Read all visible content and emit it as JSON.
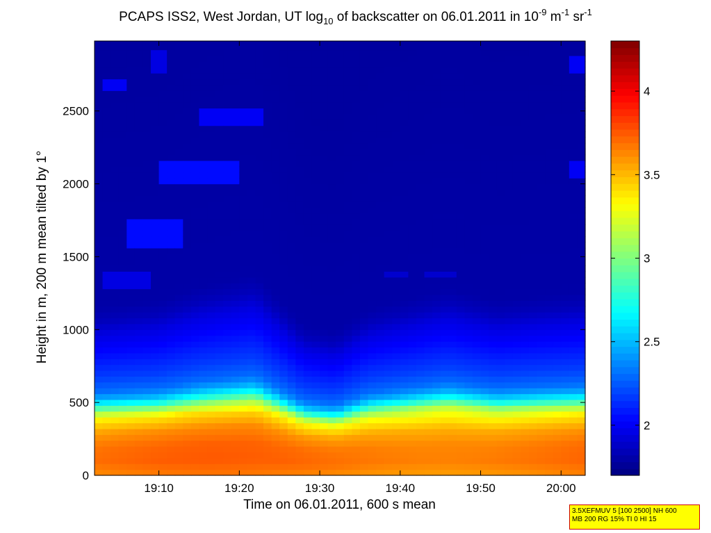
{
  "title": {
    "prefix": "PCAPS ISS2, West Jordan, UT log",
    "log_base": "10",
    "middle": " of backscatter on 06.01.2011 in 10",
    "exp1": "-9",
    "unit1": " m",
    "exp2": "-1",
    "unit2": " sr",
    "exp3": "-1"
  },
  "info_box": {
    "line1": "3.5XEFMUV 5 [100 2500] NH 600",
    "line2": "MB 200 RG 15% TI 0 HI 15"
  },
  "chart_data": {
    "type": "heatmap",
    "xlabel": "Time on 06.01.2011, 600 s mean",
    "ylabel": "Height in m, 200 m mean tilted by 1°",
    "x_range_minutes": [
      1142,
      1203
    ],
    "xticks": [
      {
        "label": "19:10",
        "min": 1150
      },
      {
        "label": "19:20",
        "min": 1160
      },
      {
        "label": "19:30",
        "min": 1170
      },
      {
        "label": "19:40",
        "min": 1180
      },
      {
        "label": "19:50",
        "min": 1190
      },
      {
        "label": "20:00",
        "min": 1200
      }
    ],
    "ylim": [
      0,
      2980
    ],
    "yticks": [
      0,
      500,
      1000,
      1500,
      2000,
      2500
    ],
    "ytick_labels": [
      "0",
      "500",
      "1000",
      "1500",
      "2000",
      "2500"
    ],
    "colorbar": {
      "colormap": "jet",
      "clim": [
        1.7,
        4.3
      ],
      "ticks": [
        2,
        2.5,
        3,
        3.5,
        4
      ],
      "tick_labels": [
        "2",
        "2.5",
        "3",
        "3.5",
        "4"
      ]
    },
    "profile_height_m": [
      0,
      100,
      200,
      300,
      400,
      450,
      500,
      550,
      600,
      700,
      800,
      900,
      1000,
      1100,
      1200,
      2980
    ],
    "profile_value": [
      3.62,
      3.7,
      3.68,
      3.58,
      3.35,
      3.1,
      2.72,
      2.45,
      2.3,
      2.18,
      2.1,
      2.02,
      1.95,
      1.85,
      1.8,
      1.78
    ],
    "boundary_layer_top_m": [
      {
        "min": 1142,
        "h": 960
      },
      {
        "min": 1150,
        "h": 1000
      },
      {
        "min": 1155,
        "h": 1080
      },
      {
        "min": 1162,
        "h": 1150
      },
      {
        "min": 1168,
        "h": 860
      },
      {
        "min": 1172,
        "h": 820
      },
      {
        "min": 1176,
        "h": 950
      },
      {
        "min": 1182,
        "h": 1020
      },
      {
        "min": 1186,
        "h": 1070
      },
      {
        "min": 1192,
        "h": 1000
      },
      {
        "min": 1198,
        "h": 1030
      },
      {
        "min": 1203,
        "h": 1050
      }
    ],
    "aerosol_patches": [
      {
        "min": 1146,
        "max": 1153,
        "h0": 1570,
        "h1": 1760,
        "value": 2.05
      },
      {
        "min": 1143,
        "max": 1149,
        "h0": 1300,
        "h1": 1380,
        "value": 1.95
      },
      {
        "min": 1150,
        "max": 1160,
        "h0": 2020,
        "h1": 2140,
        "value": 2.05
      },
      {
        "min": 1155,
        "max": 1163,
        "h0": 2400,
        "h1": 2500,
        "value": 2.0
      },
      {
        "min": 1143,
        "max": 1146,
        "h0": 2640,
        "h1": 2720,
        "value": 2.0
      },
      {
        "min": 1149,
        "max": 1151,
        "h0": 2770,
        "h1": 2900,
        "value": 1.95
      },
      {
        "min": 1201,
        "max": 1203,
        "h0": 2060,
        "h1": 2160,
        "value": 2.0
      },
      {
        "min": 1201,
        "max": 1203,
        "h0": 2760,
        "h1": 2870,
        "value": 2.0
      },
      {
        "min": 1178,
        "max": 1181,
        "h0": 1350,
        "h1": 1380,
        "value": 1.9
      },
      {
        "min": 1183,
        "max": 1187,
        "h0": 1350,
        "h1": 1390,
        "value": 1.9
      }
    ]
  }
}
